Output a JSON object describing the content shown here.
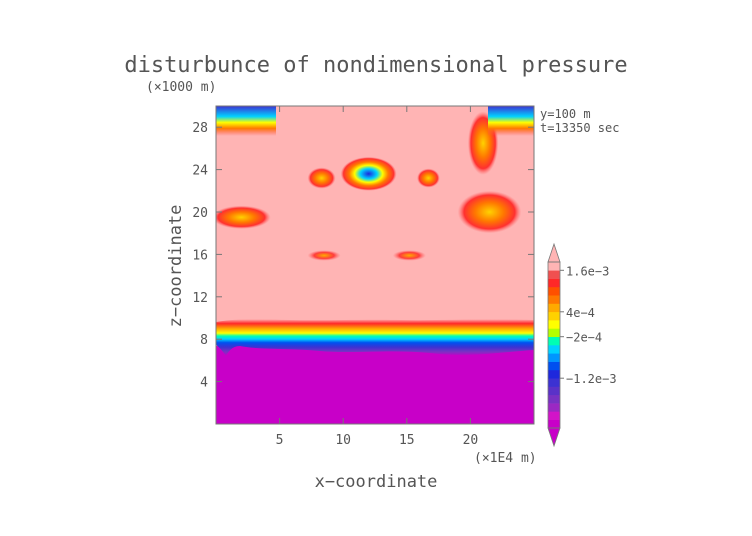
{
  "chart_data": {
    "type": "heatmap",
    "title": "disturbunce of nondimensional pressure",
    "y_unit_label": "(×1000 m)",
    "x_unit_label": "(×1E4 m)",
    "xlabel": "x−coordinate",
    "ylabel": "z−coordinate",
    "annotations": [
      "y=100 m",
      "t=13350 sec"
    ],
    "xlim": [
      0,
      25
    ],
    "ylim": [
      0,
      30
    ],
    "x_ticks": [
      "5",
      "10",
      "15",
      "20"
    ],
    "y_ticks": [
      "4",
      "8",
      "12",
      "16",
      "20",
      "24",
      "28"
    ],
    "colorbar": {
      "levels": 20,
      "labels": [
        "1.6e−3",
        "4e−4",
        "−2e−4",
        "−1.2e−3"
      ],
      "colors": [
        "#c800c8",
        "#d214c8",
        "#9b28c3",
        "#7832c3",
        "#5a32c8",
        "#3c32d2",
        "#1e28dc",
        "#0050f0",
        "#0096ff",
        "#00d2ff",
        "#00ffb4",
        "#b4ff00",
        "#ffff00",
        "#ffd200",
        "#ffaa00",
        "#ff7800",
        "#ff5000",
        "#ff2828",
        "#f05050",
        "#ffb4b4"
      ]
    },
    "regions": [
      {
        "name": "lower-layer",
        "z_range": [
          0,
          7.5
        ],
        "value_sign": "negative",
        "color": "#c800c8"
      },
      {
        "name": "transition-band",
        "z_range": [
          7.5,
          10
        ],
        "value_sign": "gradient"
      },
      {
        "name": "upper-layer",
        "z_range": [
          10,
          30
        ],
        "value_sign": "positive",
        "color": "#ffb4b4"
      }
    ],
    "features": [
      {
        "x": 12,
        "z": 23.6,
        "rx": 2.2,
        "rz": 1.6,
        "type": "blob-negative-core"
      },
      {
        "x": 8.3,
        "z": 23.2,
        "rx": 1.1,
        "rz": 1.0,
        "type": "blob"
      },
      {
        "x": 16.7,
        "z": 23.2,
        "rx": 0.9,
        "rz": 0.9,
        "type": "blob"
      },
      {
        "x": 8.5,
        "z": 15.9,
        "rx": 1.3,
        "rz": 0.5,
        "type": "blob-small"
      },
      {
        "x": 15.2,
        "z": 15.9,
        "rx": 1.3,
        "rz": 0.5,
        "type": "blob-small"
      },
      {
        "x": 2.0,
        "z": 19.5,
        "rx": 2.3,
        "rz": 1.1,
        "type": "blob"
      },
      {
        "x": 21.5,
        "z": 20.0,
        "rx": 2.5,
        "rz": 2.0,
        "type": "blob"
      },
      {
        "x": 21.0,
        "z": 26.5,
        "rx": 1.2,
        "rz": 3.0,
        "type": "blob"
      }
    ]
  }
}
